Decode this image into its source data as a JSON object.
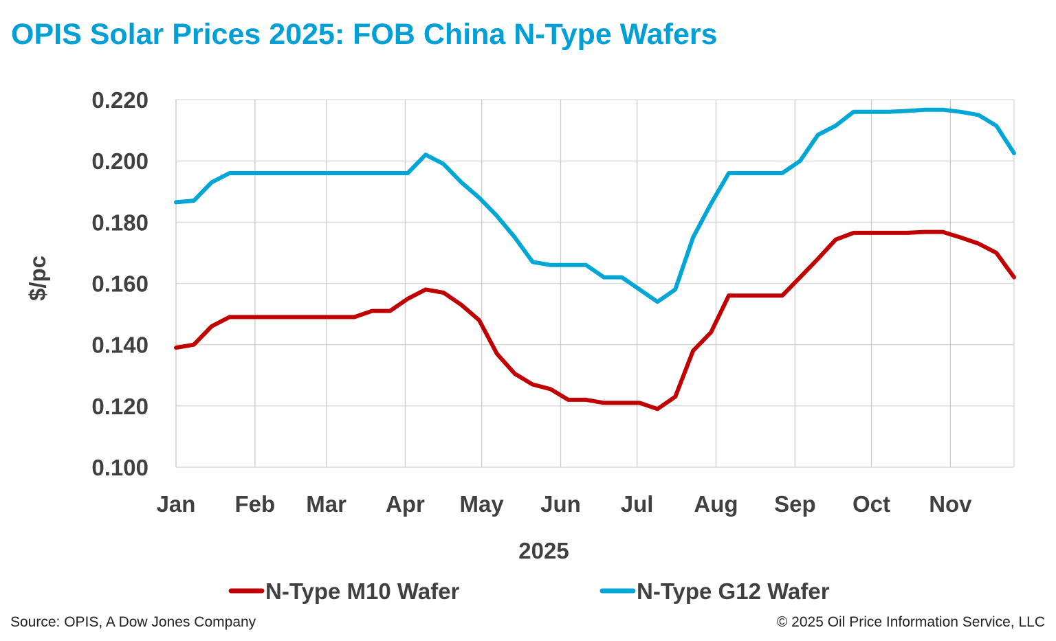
{
  "chart_data": {
    "type": "line",
    "title": "OPIS Solar Prices 2025: FOB China N-Type Wafers",
    "xlabel": "2025",
    "ylabel": "$/pc",
    "ylim": [
      0.1,
      0.22
    ],
    "yticks": [
      "0.100",
      "0.120",
      "0.140",
      "0.160",
      "0.180",
      "0.200",
      "0.220"
    ],
    "xtick_labels": [
      "Jan",
      "Feb",
      "Mar",
      "Apr",
      "May",
      "Jun",
      "Jul",
      "Aug",
      "Sep",
      "Oct",
      "Nov"
    ],
    "xtick_dates": [
      "2025-01-01",
      "2025-02-01",
      "2025-03-01",
      "2025-04-01",
      "2025-05-01",
      "2025-06-01",
      "2025-07-01",
      "2025-08-01",
      "2025-09-01",
      "2025-10-01",
      "2025-11-01"
    ],
    "grid": true,
    "legend_position": "bottom",
    "x": [
      "2025-01-01",
      "2025-01-08",
      "2025-01-15",
      "2025-01-22",
      "2025-01-29",
      "2025-02-05",
      "2025-02-12",
      "2025-02-19",
      "2025-02-26",
      "2025-03-05",
      "2025-03-12",
      "2025-03-19",
      "2025-03-26",
      "2025-04-02",
      "2025-04-09",
      "2025-04-16",
      "2025-04-23",
      "2025-04-30",
      "2025-05-07",
      "2025-05-14",
      "2025-05-21",
      "2025-05-28",
      "2025-06-04",
      "2025-06-11",
      "2025-06-18",
      "2025-06-25",
      "2025-07-02",
      "2025-07-09",
      "2025-07-16",
      "2025-07-23",
      "2025-07-30",
      "2025-08-06",
      "2025-08-13",
      "2025-08-20",
      "2025-08-27",
      "2025-09-03",
      "2025-09-10",
      "2025-09-17",
      "2025-09-24",
      "2025-10-01",
      "2025-10-08",
      "2025-10-15",
      "2025-10-22",
      "2025-10-29",
      "2025-11-05",
      "2025-11-12",
      "2025-11-19",
      "2025-11-26"
    ],
    "series": [
      {
        "name": "N-Type M10 Wafer",
        "color": "#c00000",
        "values": [
          0.139,
          0.14,
          0.146,
          0.149,
          0.149,
          0.149,
          0.149,
          0.149,
          0.149,
          0.149,
          0.149,
          0.151,
          0.151,
          0.155,
          0.158,
          0.157,
          0.153,
          0.148,
          0.137,
          0.1305,
          0.127,
          0.1255,
          0.122,
          0.122,
          0.121,
          0.121,
          0.121,
          0.119,
          0.123,
          0.138,
          0.144,
          0.156,
          0.156,
          0.156,
          0.156,
          0.162,
          0.168,
          0.1743,
          0.1765,
          0.1765,
          0.1765,
          0.1765,
          0.1768,
          0.1768,
          0.175,
          0.173,
          0.17,
          0.162
        ]
      },
      {
        "name": "N-Type G12 Wafer",
        "color": "#00a6d6",
        "values": [
          0.1865,
          0.187,
          0.193,
          0.196,
          0.196,
          0.196,
          0.196,
          0.196,
          0.196,
          0.196,
          0.196,
          0.196,
          0.196,
          0.196,
          0.202,
          0.199,
          0.193,
          0.188,
          0.182,
          0.175,
          0.167,
          0.166,
          0.166,
          0.166,
          0.162,
          0.162,
          0.158,
          0.154,
          0.158,
          0.175,
          0.186,
          0.196,
          0.196,
          0.196,
          0.196,
          0.2,
          0.2085,
          0.2115,
          0.216,
          0.216,
          0.216,
          0.2163,
          0.2167,
          0.2167,
          0.216,
          0.215,
          0.2115,
          0.2025
        ]
      }
    ]
  },
  "title_color": "#009fd6",
  "footer": {
    "source": "Source: OPIS, A Dow Jones Company",
    "copyright": "© 2025 Oil Price Information Service, LLC"
  }
}
